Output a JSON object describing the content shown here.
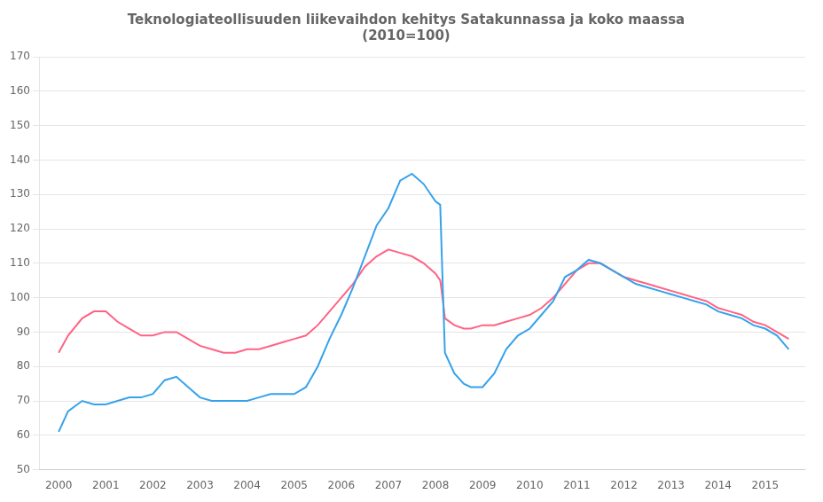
{
  "chart_data": {
    "type": "line",
    "title": "Teknologiateollisuuden liikevaihdon kehitys Satakunnassa ja koko maassa\n(2010=100)",
    "x": [
      2000.0,
      2000.2,
      2000.5,
      2000.75,
      2001.0,
      2001.25,
      2001.5,
      2001.75,
      2002.0,
      2002.25,
      2002.5,
      2002.75,
      2003.0,
      2003.25,
      2003.5,
      2003.75,
      2004.0,
      2004.25,
      2004.5,
      2004.75,
      2005.0,
      2005.25,
      2005.5,
      2005.75,
      2006.0,
      2006.25,
      2006.5,
      2006.75,
      2007.0,
      2007.25,
      2007.5,
      2007.75,
      2008.0,
      2008.1,
      2008.15,
      2008.2,
      2008.4,
      2008.6,
      2008.75,
      2009.0,
      2009.25,
      2009.5,
      2009.75,
      2010.0,
      2010.25,
      2010.5,
      2010.75,
      2011.0,
      2011.25,
      2011.5,
      2011.75,
      2012.0,
      2012.25,
      2012.5,
      2012.75,
      2013.0,
      2013.25,
      2013.5,
      2013.75,
      2014.0,
      2014.25,
      2014.5,
      2014.75,
      2015.0,
      2015.25,
      2015.5
    ],
    "series": [
      {
        "values": [
          61,
          67,
          70,
          69,
          69,
          70,
          71,
          71,
          72,
          76,
          77,
          74,
          71,
          70,
          70,
          70,
          70,
          71,
          72,
          72,
          72,
          74,
          80,
          88,
          95,
          103,
          112,
          121,
          126,
          134,
          136,
          133,
          128,
          127,
          105,
          84,
          78,
          75,
          74,
          74,
          78,
          85,
          89,
          91,
          95,
          99,
          106,
          108,
          111,
          110,
          108,
          106,
          104,
          103,
          102,
          101,
          100,
          99,
          98,
          96,
          95,
          94,
          92,
          91,
          89,
          85
        ]
      },
      {
        "values": [
          84,
          89,
          94,
          96,
          96,
          93,
          91,
          89,
          89,
          90,
          90,
          88,
          86,
          85,
          84,
          84,
          85,
          85,
          86,
          87,
          88,
          89,
          92,
          96,
          100,
          104,
          109,
          112,
          114,
          113,
          112,
          110,
          107,
          105,
          100,
          94,
          92,
          91,
          91,
          92,
          92,
          93,
          94,
          95,
          97,
          100,
          104,
          108,
          110,
          110,
          108,
          106,
          105,
          104,
          103,
          102,
          101,
          100,
          99,
          97,
          96,
          95,
          93,
          92,
          90,
          88
        ]
      }
    ],
    "xlim": [
      1999.6,
      2015.85
    ],
    "xticks": [
      2000,
      2001,
      2002,
      2003,
      2004,
      2005,
      2006,
      2007,
      2008,
      2009,
      2010,
      2011,
      2012,
      2013,
      2014,
      2015
    ],
    "ylim": [
      50,
      170
    ],
    "yticks": [
      50,
      60,
      70,
      80,
      90,
      100,
      110,
      120,
      130,
      140,
      150,
      160,
      170
    ],
    "grid": true
  }
}
